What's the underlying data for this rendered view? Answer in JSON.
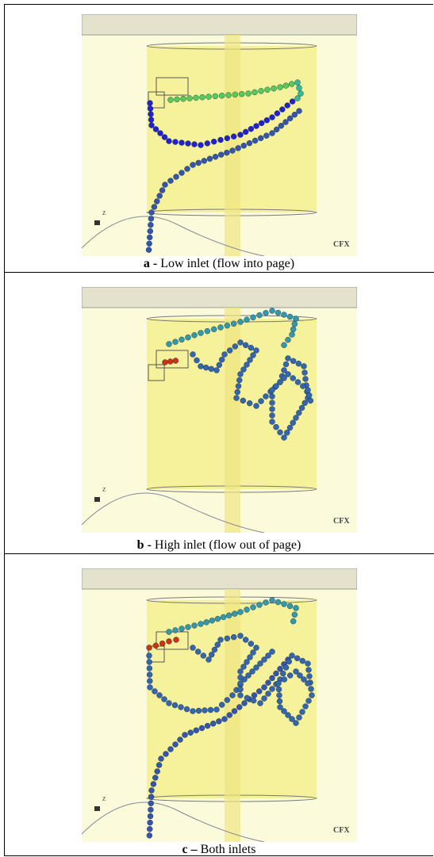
{
  "panels": [
    {
      "label": "a -",
      "caption": "Low inlet (flow into page)",
      "logo": "CFX",
      "axis": "Z"
    },
    {
      "label": "b -",
      "caption": "High inlet (flow out of page)",
      "logo": "CFX",
      "axis": "Z"
    },
    {
      "label": "c –",
      "caption": "Both inlets",
      "logo": "CFX",
      "axis": "Z"
    }
  ]
}
